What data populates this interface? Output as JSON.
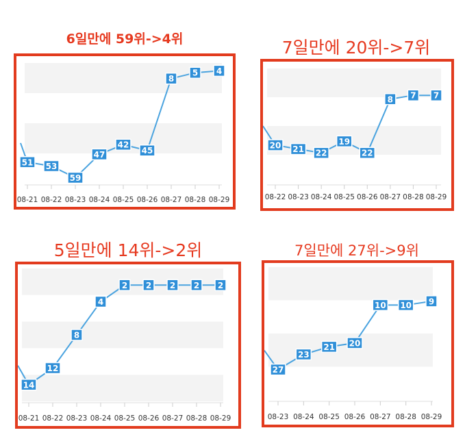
{
  "chart_data": [
    {
      "type": "line",
      "title": "6일만에 59위->4위",
      "categories": [
        "08-21",
        "08-22",
        "08-23",
        "08-24",
        "08-25",
        "08-26",
        "08-27",
        "08-28",
        "08-29"
      ],
      "values": [
        51,
        53,
        59,
        47,
        42,
        45,
        8,
        5,
        4
      ],
      "y_inverted": true,
      "ylim": [
        0,
        62
      ],
      "grid": true,
      "line_color": "#4aa3df",
      "label_color": "#2f8fd8"
    },
    {
      "type": "line",
      "title": "7일만에 20위->7위",
      "categories": [
        "08-22",
        "08-23",
        "08-24",
        "08-25",
        "08-26",
        "08-27",
        "08-28",
        "08-29"
      ],
      "values": [
        20,
        21,
        22,
        19,
        22,
        8,
        7,
        7
      ],
      "y_inverted": true,
      "ylim": [
        0,
        30
      ],
      "grid": true,
      "line_color": "#4aa3df",
      "label_color": "#2f8fd8"
    },
    {
      "type": "line",
      "title": "5일만에 14위->2위",
      "categories": [
        "08-21",
        "08-22",
        "08-23",
        "08-24",
        "08-25",
        "08-26",
        "08-27",
        "08-28",
        "08-29"
      ],
      "values": [
        14,
        12,
        8,
        4,
        2,
        2,
        2,
        2,
        2
      ],
      "y_inverted": true,
      "ylim": [
        0,
        16
      ],
      "grid": true,
      "line_color": "#4aa3df",
      "label_color": "#2f8fd8"
    },
    {
      "type": "line",
      "title": "7일만에 27위->9위",
      "categories": [
        "08-23",
        "08-24",
        "08-25",
        "08-26",
        "08-27",
        "08-28",
        "08-29"
      ],
      "values": [
        27,
        23,
        21,
        20,
        10,
        10,
        9
      ],
      "y_inverted": true,
      "ylim": [
        0,
        35
      ],
      "grid": true,
      "line_color": "#4aa3df",
      "label_color": "#2f8fd8"
    }
  ]
}
